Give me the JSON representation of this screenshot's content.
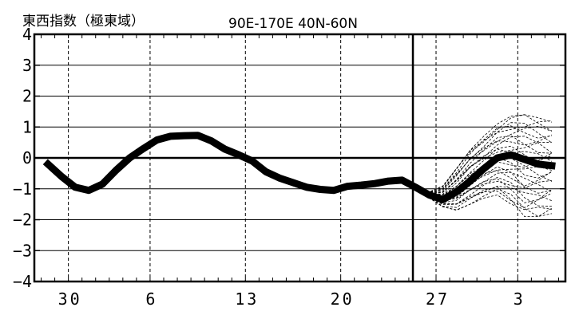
{
  "chart_data": {
    "type": "line",
    "title": "東西指数（極東域）",
    "subtitle": "90E-170E  40N-60N",
    "xlabel": "",
    "ylabel": "",
    "ylim": [
      -4,
      4
    ],
    "y_ticks": [
      "4",
      "3",
      "2",
      "1",
      "0",
      "−1",
      "−2",
      "−3",
      "−4"
    ],
    "x_ticks": [
      {
        "label": "30",
        "day": 1
      },
      {
        "label": "6",
        "day": 7
      },
      {
        "label": "13",
        "day": 14
      },
      {
        "label": "20",
        "day": 21
      },
      {
        "label": "27",
        "day": 28
      },
      {
        "label": "3",
        "day": 34
      }
    ],
    "xlim": [
      -1.5,
      37.5
    ],
    "grid": true,
    "forecast_start_day": 26.3,
    "series": [
      {
        "role": "analysis",
        "x": [
          -0.5,
          0.5,
          1.5,
          2.5,
          3.5,
          4.5,
          5.5,
          6.5,
          7.5,
          8.5,
          9.5,
          10.5,
          11.5,
          12.5,
          13.5,
          14.5,
          15.5,
          16.5,
          17.5,
          18.5,
          19.5,
          20.5,
          21.5,
          22.5,
          23.5,
          24.5,
          25.5,
          26.5,
          27.5,
          28.5,
          29.5,
          30.5,
          31.5,
          32.5,
          33.5,
          34.5,
          35.5,
          36.5
        ],
        "y": [
          -0.2,
          -0.6,
          -0.95,
          -1.05,
          -0.85,
          -0.4,
          0.0,
          0.3,
          0.58,
          0.7,
          0.72,
          0.73,
          0.55,
          0.28,
          0.1,
          -0.1,
          -0.45,
          -0.65,
          -0.8,
          -0.95,
          -1.02,
          -1.05,
          -0.92,
          -0.88,
          -0.83,
          -0.75,
          -0.72,
          -0.95,
          -1.2,
          -1.35,
          -1.1,
          -0.75,
          -0.35,
          0.0,
          0.1,
          -0.05,
          -0.2,
          -0.25
        ]
      }
    ],
    "ensemble_spread": {
      "x": [
        26.5,
        27.5,
        28.5,
        29.5,
        30.5,
        31.5,
        32.5,
        33.5,
        34.5,
        35.5,
        36.5
      ],
      "ymin": [
        -1.0,
        -1.3,
        -1.6,
        -1.7,
        -1.5,
        -1.3,
        -1.2,
        -1.5,
        -1.9,
        -1.9,
        -1.8
      ],
      "ymax": [
        -0.95,
        -1.1,
        -0.9,
        -0.3,
        0.3,
        0.7,
        1.1,
        1.35,
        1.4,
        1.3,
        1.2
      ],
      "members": 28
    }
  }
}
